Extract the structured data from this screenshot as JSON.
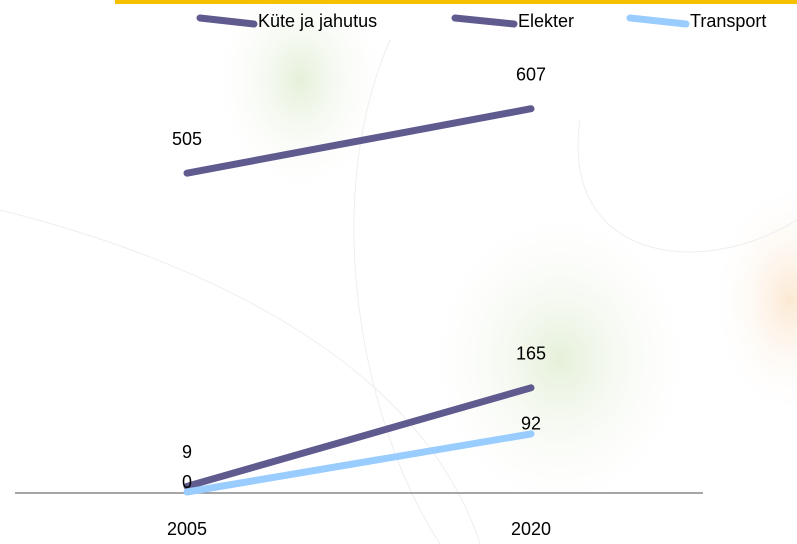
{
  "chart_data": {
    "type": "line",
    "categories": [
      "2005",
      "2020"
    ],
    "series": [
      {
        "name": "Küte ja jahutus",
        "color": "#5f5b8f",
        "values": [
          505,
          607
        ]
      },
      {
        "name": "Elekter",
        "color": "#5f5b8f",
        "values": [
          9,
          165
        ]
      },
      {
        "name": "Transport",
        "color": "#99ccff",
        "values": [
          0,
          92
        ]
      }
    ],
    "ylim": [
      0,
      700
    ],
    "legend": "top"
  }
}
